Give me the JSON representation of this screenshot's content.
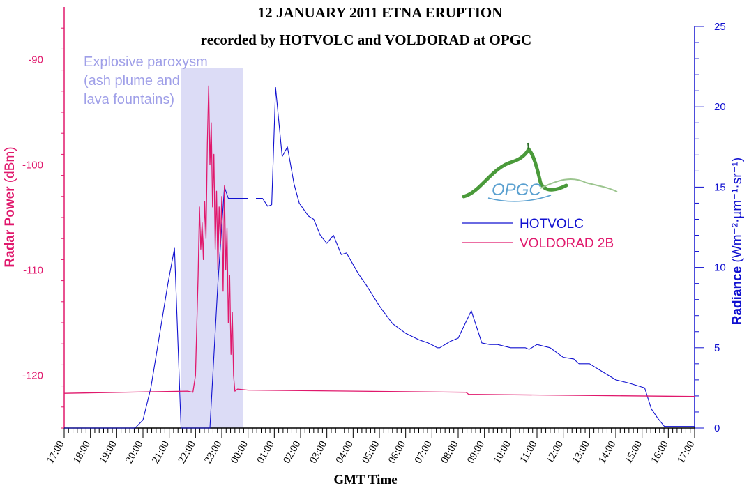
{
  "colors": {
    "radar": "#e0186c",
    "radiance": "#1010d0",
    "shade": "#dcdcf6",
    "annotation": "#9f9fe8",
    "logo_green": "#4a9a3a",
    "logo_blue": "#5aa0d0"
  },
  "chart_data": {
    "type": "line",
    "title": "12 JANUARY 2011 ETNA ERUPTION",
    "subtitle": "recorded by HOTVOLC and VOLDORAD at OPGC",
    "xlabel": "GMT Time",
    "x_ticks": [
      "17:00",
      "18:00",
      "19:00",
      "20:00",
      "21:00",
      "22:00",
      "23:00",
      "00:00",
      "01:00",
      "02:00",
      "03:00",
      "04:00",
      "05:00",
      "06:00",
      "07:00",
      "08:00",
      "09:00",
      "10:00",
      "11:00",
      "12:00",
      "13:00",
      "14:00",
      "15:00",
      "16:00",
      "17:00"
    ],
    "x_range_hours": [
      0,
      24
    ],
    "y_left": {
      "label_bold": "Radar Power",
      "label_unit": "(dBm)",
      "range": [
        -125,
        -85
      ],
      "ticks": [
        -120,
        -110,
        -100,
        -90
      ]
    },
    "y_right": {
      "label_bold": "Radiance",
      "label_unit": "(Wm⁻²·µm⁻¹·sr⁻¹)",
      "range": [
        0,
        25
      ],
      "ticks": [
        0,
        5,
        10,
        15,
        20,
        25
      ]
    },
    "annotation": {
      "lines": [
        "Explosive paroxysm",
        "(ash plume and",
        "lava fountains)"
      ],
      "shaded_x_range": [
        4.45,
        6.8
      ]
    },
    "legend": [
      "HOTVOLC",
      "VOLDORAD 2B"
    ],
    "logo_text": "OPGC",
    "series": [
      {
        "name": "HOTVOLC",
        "axis": "right",
        "x": [
          0,
          2.7,
          3.0,
          3.3,
          3.6,
          3.95,
          4.2,
          4.45,
          5.55,
          5.65,
          5.85,
          6.1,
          6.25,
          6.35,
          7.0,
          null,
          7.3,
          7.55,
          7.75,
          7.9,
          8.05,
          8.3,
          8.5,
          8.75,
          8.95,
          9.3,
          9.5,
          9.75,
          10.0,
          10.25,
          10.55,
          10.75,
          11.2,
          11.5,
          12.0,
          12.5,
          13.0,
          13.5,
          13.85,
          14.1,
          14.2,
          14.3,
          14.7,
          15.0,
          15.5,
          15.9,
          16.2,
          16.5,
          17.0,
          17.3,
          17.55,
          17.7,
          18.0,
          18.5,
          19.0,
          19.4,
          19.6,
          20.0,
          20.5,
          21.0,
          21.5,
          21.9,
          22.1,
          22.35,
          22.6,
          22.85,
          24.0
        ],
        "y": [
          0,
          0,
          0.5,
          2.5,
          5.5,
          9.0,
          11.2,
          0,
          0,
          3.0,
          9.0,
          15.0,
          14.3,
          14.3,
          14.3,
          null,
          14.3,
          14.3,
          13.8,
          13.9,
          21.2,
          16.9,
          17.5,
          15.2,
          14.0,
          13.2,
          13.0,
          12.0,
          11.5,
          12.0,
          10.8,
          10.9,
          9.6,
          8.9,
          7.6,
          6.5,
          5.9,
          5.5,
          5.3,
          5.1,
          5.0,
          5.0,
          5.4,
          5.6,
          7.3,
          5.3,
          5.2,
          5.2,
          5.0,
          5.0,
          5.0,
          4.9,
          5.2,
          5.0,
          4.4,
          4.3,
          4.0,
          4.0,
          3.5,
          3.0,
          2.8,
          2.6,
          2.5,
          1.2,
          0.6,
          0.1,
          0.1
        ]
      },
      {
        "name": "VOLDORAD 2B",
        "axis": "left",
        "x": [
          0,
          4.7,
          4.9,
          5.0,
          5.1,
          5.15,
          5.2,
          5.25,
          5.3,
          5.35,
          5.4,
          5.45,
          5.5,
          5.55,
          5.6,
          5.65,
          5.7,
          5.75,
          5.8,
          5.85,
          5.9,
          5.95,
          6.0,
          6.05,
          6.1,
          6.15,
          6.2,
          6.25,
          6.3,
          6.35,
          6.4,
          6.45,
          6.5,
          6.6,
          7.0,
          15.3,
          15.4,
          24.0
        ],
        "y": [
          -121.7,
          -121.5,
          -121.6,
          -120.0,
          -110.5,
          -104.0,
          -108.0,
          -105.5,
          -109.0,
          -103.5,
          -107.0,
          -98.0,
          -92.5,
          -100.0,
          -96.0,
          -104.0,
          -99.0,
          -108.0,
          -102.5,
          -110.0,
          -104.0,
          -107.5,
          -103.0,
          -112.0,
          -102.0,
          -110.0,
          -106.0,
          -115.0,
          -110.5,
          -118.0,
          -114.0,
          -120.0,
          -121.5,
          -121.3,
          -121.4,
          -121.6,
          -121.8,
          -122.0
        ]
      }
    ]
  }
}
